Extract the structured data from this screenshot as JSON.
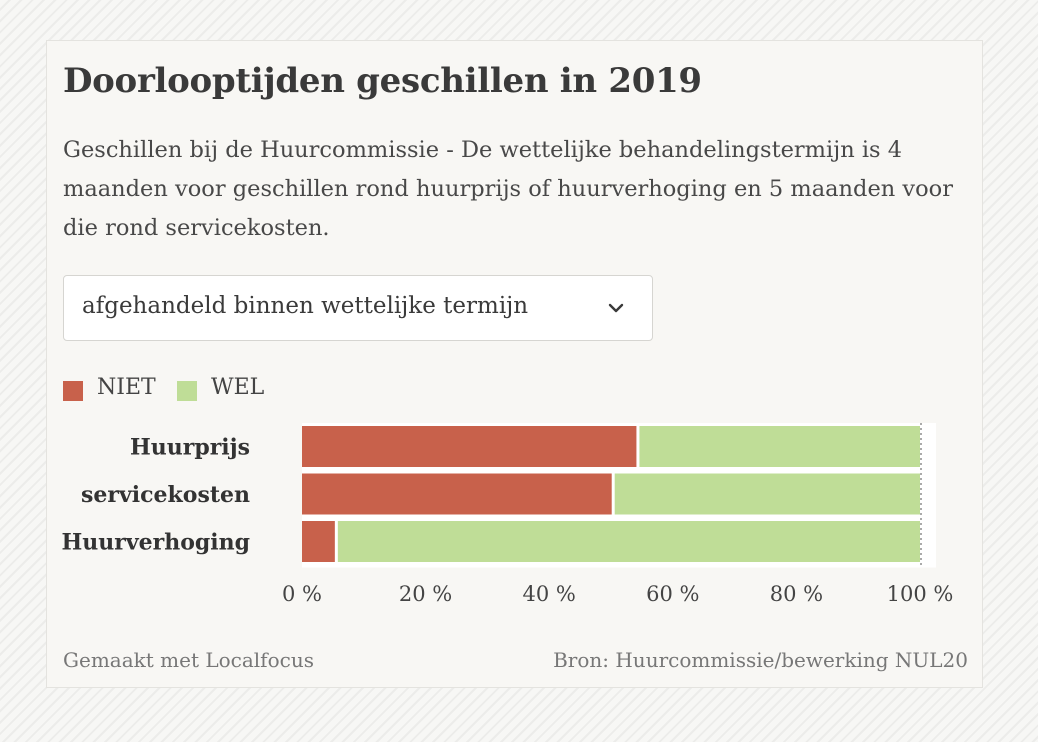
{
  "title": "Doorlooptijden geschillen in 2019",
  "subtitle": "Geschillen bij de Huurcommissie - De wettelijke behandelingstermijn is 4 maanden voor geschillen rond huurprijs of huurverhoging en 5 maanden voor die rond servicekosten.",
  "dropdown": {
    "selected": "afgehandeld binnen wettelijke termijn",
    "icon": "chevron-down-icon"
  },
  "footer": {
    "made_with": "Gemaakt met Localfocus",
    "source": "Bron:  Huurcommissie/bewerking NUL20"
  },
  "chart_data": {
    "type": "bar",
    "orientation": "horizontal",
    "stacked": true,
    "categories": [
      "Huurprijs",
      "servicekosten",
      "Huurverhoging"
    ],
    "series": [
      {
        "name": "NIET",
        "color": "#c8614b",
        "values": [
          54.6,
          50.6,
          5.8
        ]
      },
      {
        "name": "WEL",
        "color": "#bfdd97",
        "values": [
          45.4,
          49.4,
          94.2
        ]
      }
    ],
    "xlim": [
      0,
      100
    ],
    "xticks": [
      0,
      20,
      40,
      60,
      80,
      100
    ],
    "xtick_labels": [
      "0 %",
      "20 %",
      "40 %",
      "60 %",
      "80 %",
      "100 %"
    ],
    "legend_position": "top-left",
    "grid": false
  }
}
